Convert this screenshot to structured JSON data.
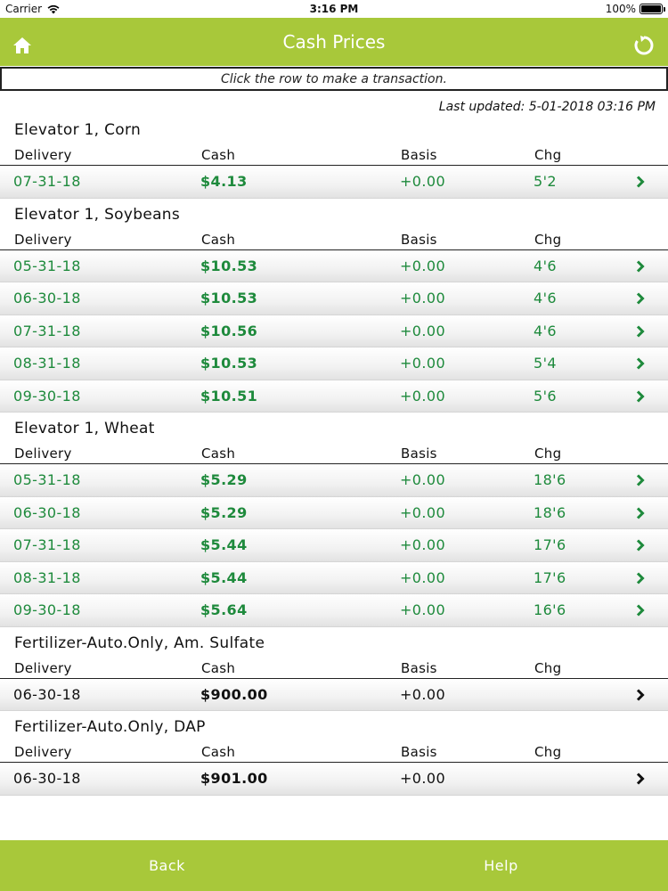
{
  "status_bar": {
    "carrier": "Carrier",
    "time": "3:16 PM",
    "battery": "100%"
  },
  "header": {
    "title": "Cash Prices"
  },
  "hint": "Click the row to make a transaction.",
  "last_updated": "Last updated: 5-01-2018 03:16 PM",
  "columns": {
    "delivery": "Delivery",
    "cash": "Cash",
    "basis": "Basis",
    "chg": "Chg"
  },
  "sections": [
    {
      "title": "Elevator 1, Corn",
      "rows": [
        {
          "delivery": "07-31-18",
          "cash": "$4.13",
          "basis": "+0.00",
          "chg": "5'2"
        }
      ]
    },
    {
      "title": "Elevator 1, Soybeans",
      "rows": [
        {
          "delivery": "05-31-18",
          "cash": "$10.53",
          "basis": "+0.00",
          "chg": "4'6"
        },
        {
          "delivery": "06-30-18",
          "cash": "$10.53",
          "basis": "+0.00",
          "chg": "4'6"
        },
        {
          "delivery": "07-31-18",
          "cash": "$10.56",
          "basis": "+0.00",
          "chg": "4'6"
        },
        {
          "delivery": "08-31-18",
          "cash": "$10.53",
          "basis": "+0.00",
          "chg": "5'4"
        },
        {
          "delivery": "09-30-18",
          "cash": "$10.51",
          "basis": "+0.00",
          "chg": "5'6"
        }
      ]
    },
    {
      "title": "Elevator 1, Wheat",
      "rows": [
        {
          "delivery": "05-31-18",
          "cash": "$5.29",
          "basis": "+0.00",
          "chg": "18'6"
        },
        {
          "delivery": "06-30-18",
          "cash": "$5.29",
          "basis": "+0.00",
          "chg": "18'6"
        },
        {
          "delivery": "07-31-18",
          "cash": "$5.44",
          "basis": "+0.00",
          "chg": "17'6"
        },
        {
          "delivery": "08-31-18",
          "cash": "$5.44",
          "basis": "+0.00",
          "chg": "17'6"
        },
        {
          "delivery": "09-30-18",
          "cash": "$5.64",
          "basis": "+0.00",
          "chg": "16'6"
        }
      ]
    },
    {
      "title": "Fertilizer-Auto.Only, Am. Sulfate",
      "rows": [
        {
          "delivery": "06-30-18",
          "cash": "$900.00",
          "basis": "+0.00",
          "chg": ""
        }
      ]
    },
    {
      "title": "Fertilizer-Auto.Only, DAP",
      "rows": [
        {
          "delivery": "06-30-18",
          "cash": "$901.00",
          "basis": "+0.00",
          "chg": ""
        }
      ]
    }
  ],
  "footer": {
    "back": "Back",
    "help": "Help"
  },
  "colors": {
    "accent": "#a8c83a",
    "price_green": "#1e8a3c"
  },
  "icons": {
    "home": "home-icon",
    "refresh": "refresh-icon",
    "row_arrow": "chevron-right-icon"
  }
}
